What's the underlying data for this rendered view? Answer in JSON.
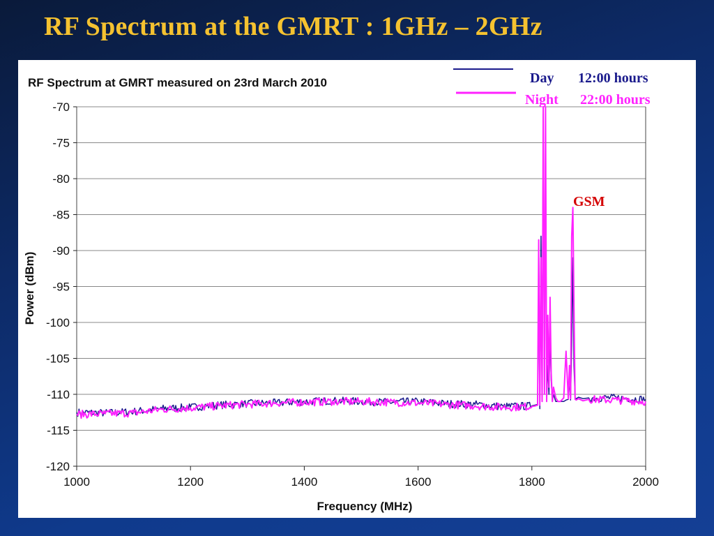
{
  "slide": {
    "title": "RF Spectrum at the GMRT :  1GHz – 2GHz"
  },
  "colors": {
    "title": "#f5c230",
    "day": "#1a1a8c",
    "night": "#ff22ff",
    "annotation": "#d40000",
    "grid": "#888888",
    "background": "#0d2a66"
  },
  "chart_data": {
    "type": "line",
    "title": "RF Spectrum at GMRT measured on 23rd March 2010",
    "xlabel": "Frequency (MHz)",
    "ylabel": "Power (dBm)",
    "xlim": [
      1000,
      2000
    ],
    "ylim": [
      -120,
      -70
    ],
    "xticks": [
      "1000",
      "1200",
      "1400",
      "1600",
      "1800",
      "2000"
    ],
    "yticks": [
      "-70",
      "-75",
      "-80",
      "-85",
      "-90",
      "-95",
      "-100",
      "-105",
      "-110",
      "-115",
      "-120"
    ],
    "grid": "horizontal",
    "legend": [
      {
        "label": "Day",
        "time": "12:00 hours",
        "color": "#1a1a8c"
      },
      {
        "label": "Night",
        "time": "22:00 hours",
        "color": "#ff22ff"
      }
    ],
    "annotations": [
      {
        "text": "GSM",
        "x": 1872,
        "y": -83
      }
    ],
    "series": [
      {
        "name": "Day 12:00 hours",
        "color": "#1a1a8c",
        "x": [
          1000,
          1050,
          1100,
          1150,
          1200,
          1250,
          1300,
          1350,
          1400,
          1450,
          1500,
          1550,
          1600,
          1650,
          1700,
          1750,
          1800,
          1806,
          1810,
          1812,
          1814,
          1816,
          1818,
          1820,
          1822,
          1824,
          1826,
          1828,
          1830,
          1832,
          1834,
          1836,
          1838,
          1842,
          1846,
          1850,
          1856,
          1860,
          1864,
          1866,
          1868,
          1870,
          1872,
          1874,
          1876,
          1878,
          1882,
          1890,
          1900,
          1950,
          2000
        ],
        "y": [
          -112.5,
          -112.6,
          -112.4,
          -112.0,
          -111.8,
          -111.5,
          -111.3,
          -111.2,
          -111.0,
          -110.9,
          -111.0,
          -111.1,
          -111.0,
          -111.3,
          -111.4,
          -111.7,
          -111.6,
          -111.5,
          -111.4,
          -94,
          -112,
          -88,
          -111,
          -71,
          -110,
          -73,
          -111,
          -106,
          -110,
          -102,
          -108,
          -111,
          -110,
          -111,
          -111,
          -111,
          -111,
          -110.8,
          -110.7,
          -108,
          -110.8,
          -103,
          -91,
          -106,
          -110.5,
          -110.6,
          -110.4,
          -110.6,
          -110.5,
          -110.5,
          -110.7
        ]
      },
      {
        "name": "Night 22:00 hours",
        "color": "#ff22ff",
        "x": [
          1000,
          1050,
          1100,
          1150,
          1200,
          1250,
          1300,
          1350,
          1400,
          1450,
          1500,
          1550,
          1600,
          1650,
          1700,
          1750,
          1800,
          1806,
          1810,
          1812,
          1814,
          1816,
          1818,
          1820,
          1822,
          1824,
          1826,
          1828,
          1830,
          1832,
          1834,
          1836,
          1838,
          1842,
          1846,
          1850,
          1856,
          1860,
          1864,
          1866,
          1868,
          1870,
          1872,
          1874,
          1876,
          1878,
          1882,
          1890,
          1900,
          1950,
          2000
        ],
        "y": [
          -112.8,
          -112.7,
          -112.6,
          -112.1,
          -111.9,
          -111.6,
          -111.4,
          -111.2,
          -111.1,
          -111.0,
          -111.0,
          -111.1,
          -111.2,
          -111.4,
          -111.6,
          -111.8,
          -111.7,
          -111.6,
          -111.5,
          -88.5,
          -111.5,
          -91,
          -111,
          -70,
          -110,
          -70,
          -111,
          -99,
          -109,
          -96.5,
          -107,
          -111,
          -109,
          -110.5,
          -111,
          -111,
          -110.5,
          -104,
          -110.6,
          -106,
          -110.6,
          -88,
          -84,
          -98,
          -110.7,
          -110.8,
          -110.6,
          -110.9,
          -110.7,
          -110.8,
          -111.0
        ]
      }
    ]
  }
}
